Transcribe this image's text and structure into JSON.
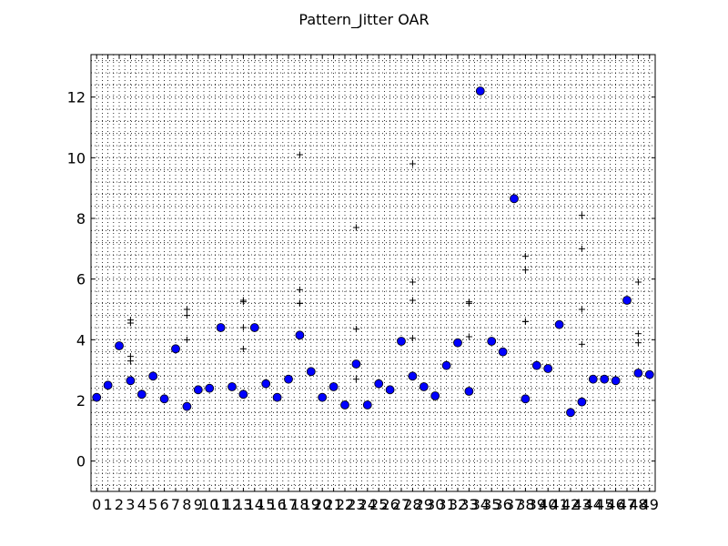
{
  "chart_data": {
    "type": "scatter",
    "title": "Pattern_Jitter OAR",
    "xlabel": "",
    "ylabel": "",
    "xlim": [
      -0.5,
      49.5
    ],
    "ylim": [
      -1,
      13.4
    ],
    "x_ticks": [
      0,
      1,
      2,
      3,
      4,
      5,
      6,
      7,
      8,
      9,
      10,
      11,
      12,
      13,
      14,
      15,
      16,
      17,
      18,
      19,
      20,
      21,
      22,
      23,
      24,
      25,
      26,
      27,
      28,
      29,
      30,
      31,
      32,
      33,
      34,
      35,
      36,
      37,
      38,
      39,
      40,
      41,
      42,
      43,
      44,
      45,
      46,
      47,
      48,
      49
    ],
    "y_ticks": [
      0,
      2,
      4,
      6,
      8,
      10,
      12
    ],
    "x_minor_step": 0.5,
    "y_minor_step": 0.4,
    "grid": true,
    "series": [
      {
        "marker": "circle",
        "color": "#0000ff",
        "points": [
          [
            0,
            2.1
          ],
          [
            1,
            2.5
          ],
          [
            2,
            3.8
          ],
          [
            3,
            2.65
          ],
          [
            4,
            2.2
          ],
          [
            5,
            2.8
          ],
          [
            6,
            2.05
          ],
          [
            7,
            3.7
          ],
          [
            8,
            1.8
          ],
          [
            9,
            2.35
          ],
          [
            10,
            2.4
          ],
          [
            11,
            4.4
          ],
          [
            12,
            2.45
          ],
          [
            13,
            2.2
          ],
          [
            14,
            4.4
          ],
          [
            15,
            2.55
          ],
          [
            16,
            2.1
          ],
          [
            17,
            2.7
          ],
          [
            18,
            4.15
          ],
          [
            19,
            2.95
          ],
          [
            20,
            2.1
          ],
          [
            21,
            2.45
          ],
          [
            22,
            1.85
          ],
          [
            23,
            3.2
          ],
          [
            24,
            1.85
          ],
          [
            25,
            2.55
          ],
          [
            26,
            2.35
          ],
          [
            27,
            3.95
          ],
          [
            28,
            2.8
          ],
          [
            29,
            2.45
          ],
          [
            30,
            2.15
          ],
          [
            31,
            3.15
          ],
          [
            32,
            3.9
          ],
          [
            33,
            2.3
          ],
          [
            34,
            12.2
          ],
          [
            35,
            3.95
          ],
          [
            36,
            3.6
          ],
          [
            37,
            8.65
          ],
          [
            38,
            2.05
          ],
          [
            39,
            3.15
          ],
          [
            40,
            3.05
          ],
          [
            41,
            4.5
          ],
          [
            42,
            1.6
          ],
          [
            43,
            1.95
          ],
          [
            44,
            2.7
          ],
          [
            45,
            2.7
          ],
          [
            46,
            2.65
          ],
          [
            47,
            5.3
          ],
          [
            48,
            2.9
          ],
          [
            49,
            2.85
          ]
        ]
      },
      {
        "marker": "plus",
        "color": "#000000",
        "points": [
          [
            3,
            4.55
          ],
          [
            3,
            4.65
          ],
          [
            3,
            3.45
          ],
          [
            3,
            3.3
          ],
          [
            8,
            5.0
          ],
          [
            8,
            4.8
          ],
          [
            8,
            4.0
          ],
          [
            13,
            5.3
          ],
          [
            13,
            5.25
          ],
          [
            13,
            4.4
          ],
          [
            13,
            3.7
          ],
          [
            18,
            10.1
          ],
          [
            18,
            5.65
          ],
          [
            18,
            5.2
          ],
          [
            18,
            5.2
          ],
          [
            23,
            7.7
          ],
          [
            23,
            4.35
          ],
          [
            23,
            2.7
          ],
          [
            28,
            9.8
          ],
          [
            28,
            5.9
          ],
          [
            28,
            5.3
          ],
          [
            28,
            4.05
          ],
          [
            33,
            5.25
          ],
          [
            33,
            5.2
          ],
          [
            33,
            4.1
          ],
          [
            38,
            6.75
          ],
          [
            38,
            6.3
          ],
          [
            38,
            4.6
          ],
          [
            38,
            4.6
          ],
          [
            43,
            8.1
          ],
          [
            43,
            7.0
          ],
          [
            43,
            5.0
          ],
          [
            43,
            3.85
          ],
          [
            48,
            5.9
          ],
          [
            48,
            4.2
          ],
          [
            48,
            3.9
          ]
        ]
      }
    ]
  }
}
